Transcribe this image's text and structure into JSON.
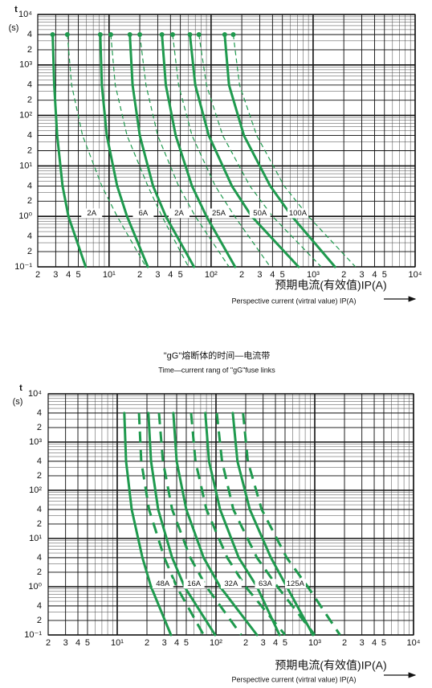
{
  "chart_data": [
    {
      "type": "line",
      "ylabel": "t",
      "yunit": "(s)",
      "xlabel": "预期电流(有效值)IP(A)",
      "xlabel_en": "Perspective current (virtral value) IP(A)",
      "xscale": "log",
      "yscale": "log",
      "grid": true,
      "minor_grid": true,
      "xlim": [
        2,
        10000
      ],
      "ylim": [
        0.1,
        10000
      ],
      "xticks": [
        2,
        3,
        4,
        5,
        {
          "value": 10,
          "label": "10¹"
        },
        {
          "value": 20,
          "label": "2"
        },
        {
          "value": 30,
          "label": "3"
        },
        {
          "value": 40,
          "label": "4"
        },
        {
          "value": 50,
          "label": "5"
        },
        {
          "value": 100,
          "label": "10²"
        },
        {
          "value": 200,
          "label": "2"
        },
        {
          "value": 300,
          "label": "3"
        },
        {
          "value": 400,
          "label": "4"
        },
        {
          "value": 500,
          "label": "5"
        },
        {
          "value": 1000,
          "label": "10³"
        },
        {
          "value": 2000,
          "label": "2"
        },
        {
          "value": 3000,
          "label": "3"
        },
        {
          "value": 4000,
          "label": "4"
        },
        {
          "value": 5000,
          "label": "5"
        },
        {
          "value": 10000,
          "label": "10⁴"
        }
      ],
      "yticks": [
        {
          "value": 0.1,
          "label": "10⁻¹"
        },
        {
          "value": 0.2,
          "label": "2"
        },
        {
          "value": 0.4,
          "label": "4"
        },
        {
          "value": 1,
          "label": "10⁰"
        },
        2,
        4,
        {
          "value": 10,
          "label": "10¹"
        },
        {
          "value": 20,
          "label": "2"
        },
        {
          "value": 40,
          "label": "4"
        },
        {
          "value": 100,
          "label": "10²"
        },
        {
          "value": 200,
          "label": "2"
        },
        {
          "value": 400,
          "label": "4"
        },
        {
          "value": 1000,
          "label": "10³"
        },
        {
          "value": 2000,
          "label": "2"
        },
        {
          "value": 4000,
          "label": "4"
        },
        {
          "value": 10000,
          "label": "10⁴"
        }
      ],
      "series": [
        {
          "name": "2A",
          "color": "#1f9a4e",
          "values": [
            4000,
            400,
            40,
            4,
            1,
            0.1
          ],
          "x": [
            2.8,
            2.9,
            3.1,
            3.5,
            4,
            5.9
          ],
          "x2": [
            3.9,
            4.3,
            5.5,
            8.5,
            12,
            23
          ]
        },
        {
          "name": "6A",
          "color": "#1f9a4e",
          "values": [
            4000,
            400,
            40,
            4,
            1,
            0.1
          ],
          "x": [
            8.2,
            8.5,
            9.5,
            12,
            15,
            24
          ],
          "x2": [
            10.4,
            11.5,
            15,
            24,
            33,
            60
          ]
        },
        {
          "name": "2A",
          "color": "#1f9a4e",
          "values": [
            4000,
            400,
            40,
            4,
            1,
            0.1
          ],
          "x": [
            16,
            17,
            20,
            27,
            36,
            68
          ],
          "x2": [
            20,
            23,
            30,
            48,
            70,
            150
          ]
        },
        {
          "name": "25A",
          "color": "#1f9a4e",
          "values": [
            4000,
            400,
            40,
            4,
            1,
            0.1
          ],
          "x": [
            33,
            36,
            45,
            65,
            90,
            172
          ],
          "x2": [
            42,
            48,
            65,
            110,
            170,
            380
          ]
        },
        {
          "name": "50A",
          "color": "#1f9a4e",
          "values": [
            4000,
            400,
            40,
            4,
            1,
            0.1
          ],
          "x": [
            62,
            70,
            95,
            160,
            250,
            720
          ],
          "x2": [
            76,
            90,
            130,
            240,
            400,
            1200
          ]
        },
        {
          "name": "100A",
          "color": "#1f9a4e",
          "values": [
            4000,
            400,
            40,
            4,
            1,
            0.1
          ],
          "x": [
            136,
            150,
            210,
            380,
            620,
            1640
          ],
          "x2": [
            165,
            190,
            280,
            520,
            900,
            2600
          ]
        }
      ]
    },
    {
      "type": "line",
      "title": "\"gG\"熔断体的时间—电流带",
      "subtitle": "Time—current rang of \"gG\"fuse links",
      "ylabel": "t",
      "yunit": "(s)",
      "xlabel": "预期电流(有效值)IP(A)",
      "xlabel_en": "Perspective current (virtral value) IP(A)",
      "xscale": "log",
      "yscale": "log",
      "grid": true,
      "minor_grid": true,
      "xlim": [
        2,
        10000
      ],
      "ylim": [
        0.1,
        10000
      ],
      "xticks": [
        2,
        3,
        4,
        5,
        {
          "value": 10,
          "label": "10¹"
        },
        {
          "value": 20,
          "label": "2"
        },
        {
          "value": 30,
          "label": "3"
        },
        {
          "value": 40,
          "label": "4"
        },
        {
          "value": 50,
          "label": "5"
        },
        {
          "value": 100,
          "label": "10²"
        },
        {
          "value": 200,
          "label": "2"
        },
        {
          "value": 300,
          "label": "3"
        },
        {
          "value": 400,
          "label": "4"
        },
        {
          "value": 500,
          "label": "5"
        },
        {
          "value": 1000,
          "label": "10³"
        },
        {
          "value": 2000,
          "label": "2"
        },
        {
          "value": 3000,
          "label": "3"
        },
        {
          "value": 4000,
          "label": "4"
        },
        {
          "value": 5000,
          "label": "5"
        },
        {
          "value": 10000,
          "label": "10⁴"
        }
      ],
      "yticks": [
        {
          "value": 0.1,
          "label": "10⁻¹"
        },
        {
          "value": 0.2,
          "label": "2"
        },
        {
          "value": 0.4,
          "label": "4"
        },
        {
          "value": 1,
          "label": "10⁰"
        },
        2,
        4,
        {
          "value": 10,
          "label": "10¹"
        },
        {
          "value": 20,
          "label": "2"
        },
        {
          "value": 40,
          "label": "4"
        },
        {
          "value": 100,
          "label": "10²"
        },
        {
          "value": 200,
          "label": "2"
        },
        {
          "value": 400,
          "label": "4"
        },
        {
          "value": 1000,
          "label": "10³"
        },
        {
          "value": 2000,
          "label": "2"
        },
        {
          "value": 4000,
          "label": "4"
        },
        {
          "value": 10000,
          "label": "10⁴"
        }
      ],
      "series": [
        {
          "name": "48A",
          "color": "#1f9a4e",
          "values": [
            4000,
            400,
            40,
            4,
            1,
            0.1
          ],
          "x": [
            11.8,
            12.3,
            14,
            18,
            22,
            35
          ],
          "x2": [
            16.6,
            17.5,
            21,
            30,
            40,
            75
          ]
        },
        {
          "name": "16A",
          "color": "#1f9a4e",
          "values": [
            4000,
            400,
            40,
            4,
            1,
            0.1
          ],
          "x": [
            20.7,
            22,
            26,
            36,
            48,
            98
          ],
          "x2": [
            26.5,
            29,
            36,
            55,
            80,
            180
          ]
        },
        {
          "name": "32A",
          "color": "#1f9a4e",
          "values": [
            4000,
            400,
            40,
            4,
            1,
            0.1
          ],
          "x": [
            37,
            40,
            50,
            75,
            110,
            260
          ],
          "x2": [
            56,
            62,
            80,
            130,
            200,
            500
          ]
        },
        {
          "name": "63A",
          "color": "#1f9a4e",
          "values": [
            4000,
            400,
            40,
            4,
            1,
            0.1
          ],
          "x": [
            78,
            85,
            110,
            170,
            260,
            440
          ],
          "x2": [
            102,
            115,
            150,
            260,
            420,
            1000
          ]
        },
        {
          "name": "125A",
          "color": "#1f9a4e",
          "values": [
            4000,
            400,
            40,
            4,
            1,
            0.1
          ],
          "x": [
            148,
            165,
            220,
            360,
            520,
            960
          ],
          "x2": [
            188,
            210,
            290,
            520,
            850,
            1800
          ]
        }
      ]
    }
  ]
}
